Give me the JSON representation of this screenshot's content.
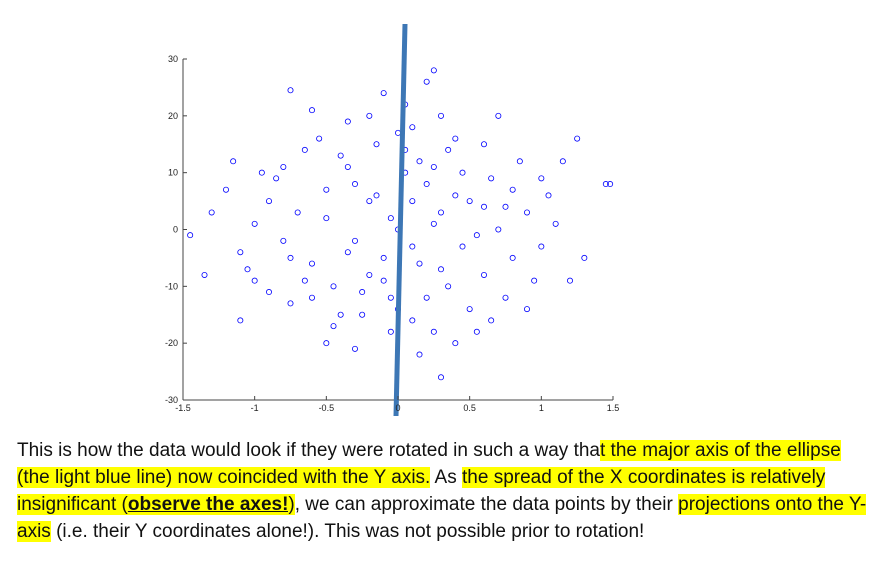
{
  "chart_data": {
    "type": "scatter",
    "color": "#0000ff",
    "x": [
      -0.05,
      0.1,
      -0.2,
      0.25,
      -0.35,
      0.4,
      0.05,
      -0.1,
      0.15,
      -0.3,
      0.3,
      -0.5,
      0.55,
      -0.6,
      0.6,
      0.0,
      -0.15,
      0.2,
      0.45,
      -0.45,
      0.7,
      -0.7,
      0.35,
      -0.25,
      0.1,
      -0.05,
      0.8,
      -0.8,
      0.65,
      -0.65,
      0.9,
      -0.9,
      0.5,
      -0.4,
      0.25,
      -0.2,
      0.05,
      0.3,
      -0.35,
      0.6,
      -0.55,
      0.75,
      -0.75,
      1.0,
      -1.0,
      1.05,
      -1.05,
      0.95,
      -0.95,
      0.85,
      -0.85,
      0.15,
      -0.3,
      0.4,
      -0.1,
      0.2,
      -0.75,
      0.3,
      0.25,
      -0.5,
      1.25,
      1.45,
      1.48,
      -1.35,
      -1.45,
      -1.2,
      -1.1,
      1.2,
      1.15,
      -1.15,
      1.3,
      -1.3,
      0.7,
      -0.6,
      0.55,
      -0.45,
      0.0,
      0.1,
      -0.1,
      0.2,
      -0.2,
      0.3,
      -0.3,
      0.15,
      -0.15,
      0.45,
      -0.5,
      0.5,
      0.05,
      -0.05,
      0.35,
      -0.35,
      0.6,
      -0.6,
      0.8,
      -0.8,
      0.9,
      -0.9,
      1.1,
      -1.1,
      0.65,
      -0.65,
      0.0,
      0.1,
      -0.25,
      0.25,
      0.4,
      -0.4,
      0.75,
      -0.75,
      1.0,
      -1.0
    ],
    "y": [
      2,
      -3,
      5,
      1,
      -4,
      6,
      10,
      -9,
      12,
      8,
      -7,
      2,
      -1,
      -6,
      4,
      -14,
      15,
      -12,
      10,
      -10,
      0,
      3,
      14,
      -15,
      18,
      -18,
      -5,
      -2,
      9,
      -9,
      3,
      5,
      -14,
      13,
      -18,
      20,
      22,
      20,
      19,
      15,
      16,
      -12,
      -13,
      -3,
      1,
      6,
      -7,
      -9,
      10,
      12,
      9,
      -22,
      -21,
      -20,
      24,
      26,
      24.5,
      -26,
      28,
      -20,
      16,
      8,
      8,
      -8,
      -1,
      7,
      -16,
      -9,
      12,
      12,
      -5,
      3,
      20,
      21,
      -18,
      -17,
      0,
      5,
      -5,
      8,
      -8,
      3,
      -2,
      -6,
      6,
      -3,
      7,
      5,
      14,
      -12,
      -10,
      11,
      -8,
      -12,
      7,
      11,
      -14,
      -11,
      1,
      -4,
      -16,
      14,
      17,
      -16,
      -11,
      11,
      16,
      -15,
      4,
      -5,
      9,
      -9
    ],
    "xlim": [
      -1.5,
      1.5
    ],
    "xticks": [
      -1.5,
      -1,
      -0.5,
      0,
      0.5,
      1,
      1.5
    ],
    "ylim": [
      -30,
      30
    ],
    "yticks": [
      -30,
      -20,
      -10,
      0,
      10,
      20,
      30
    ]
  },
  "caption": [
    {
      "text": "This is how the data would look if they were rotated in such a way tha",
      "highlight": false,
      "bold": false
    },
    {
      "text": "t the major axis of the ellipse (the light blue line) now coincided with the Y axis.",
      "highlight": true,
      "bold": false
    },
    {
      "text": " As ",
      "highlight": false,
      "bold": false
    },
    {
      "text": "the spread of the X coordinates is relatively insignificant (",
      "highlight": true,
      "bold": false
    },
    {
      "text": "observe the axes!",
      "highlight": true,
      "bold": true
    },
    {
      "text": ")",
      "highlight": true,
      "bold": false
    },
    {
      "text": ", we can approximate the data points by their ",
      "highlight": false,
      "bold": false
    },
    {
      "text": "projections onto the Y-axis",
      "highlight": true,
      "bold": false
    },
    {
      "text": " (i.e. their Y coordinates alone!). This was not possible prior to rotation!",
      "highlight": false,
      "bold": false
    }
  ]
}
